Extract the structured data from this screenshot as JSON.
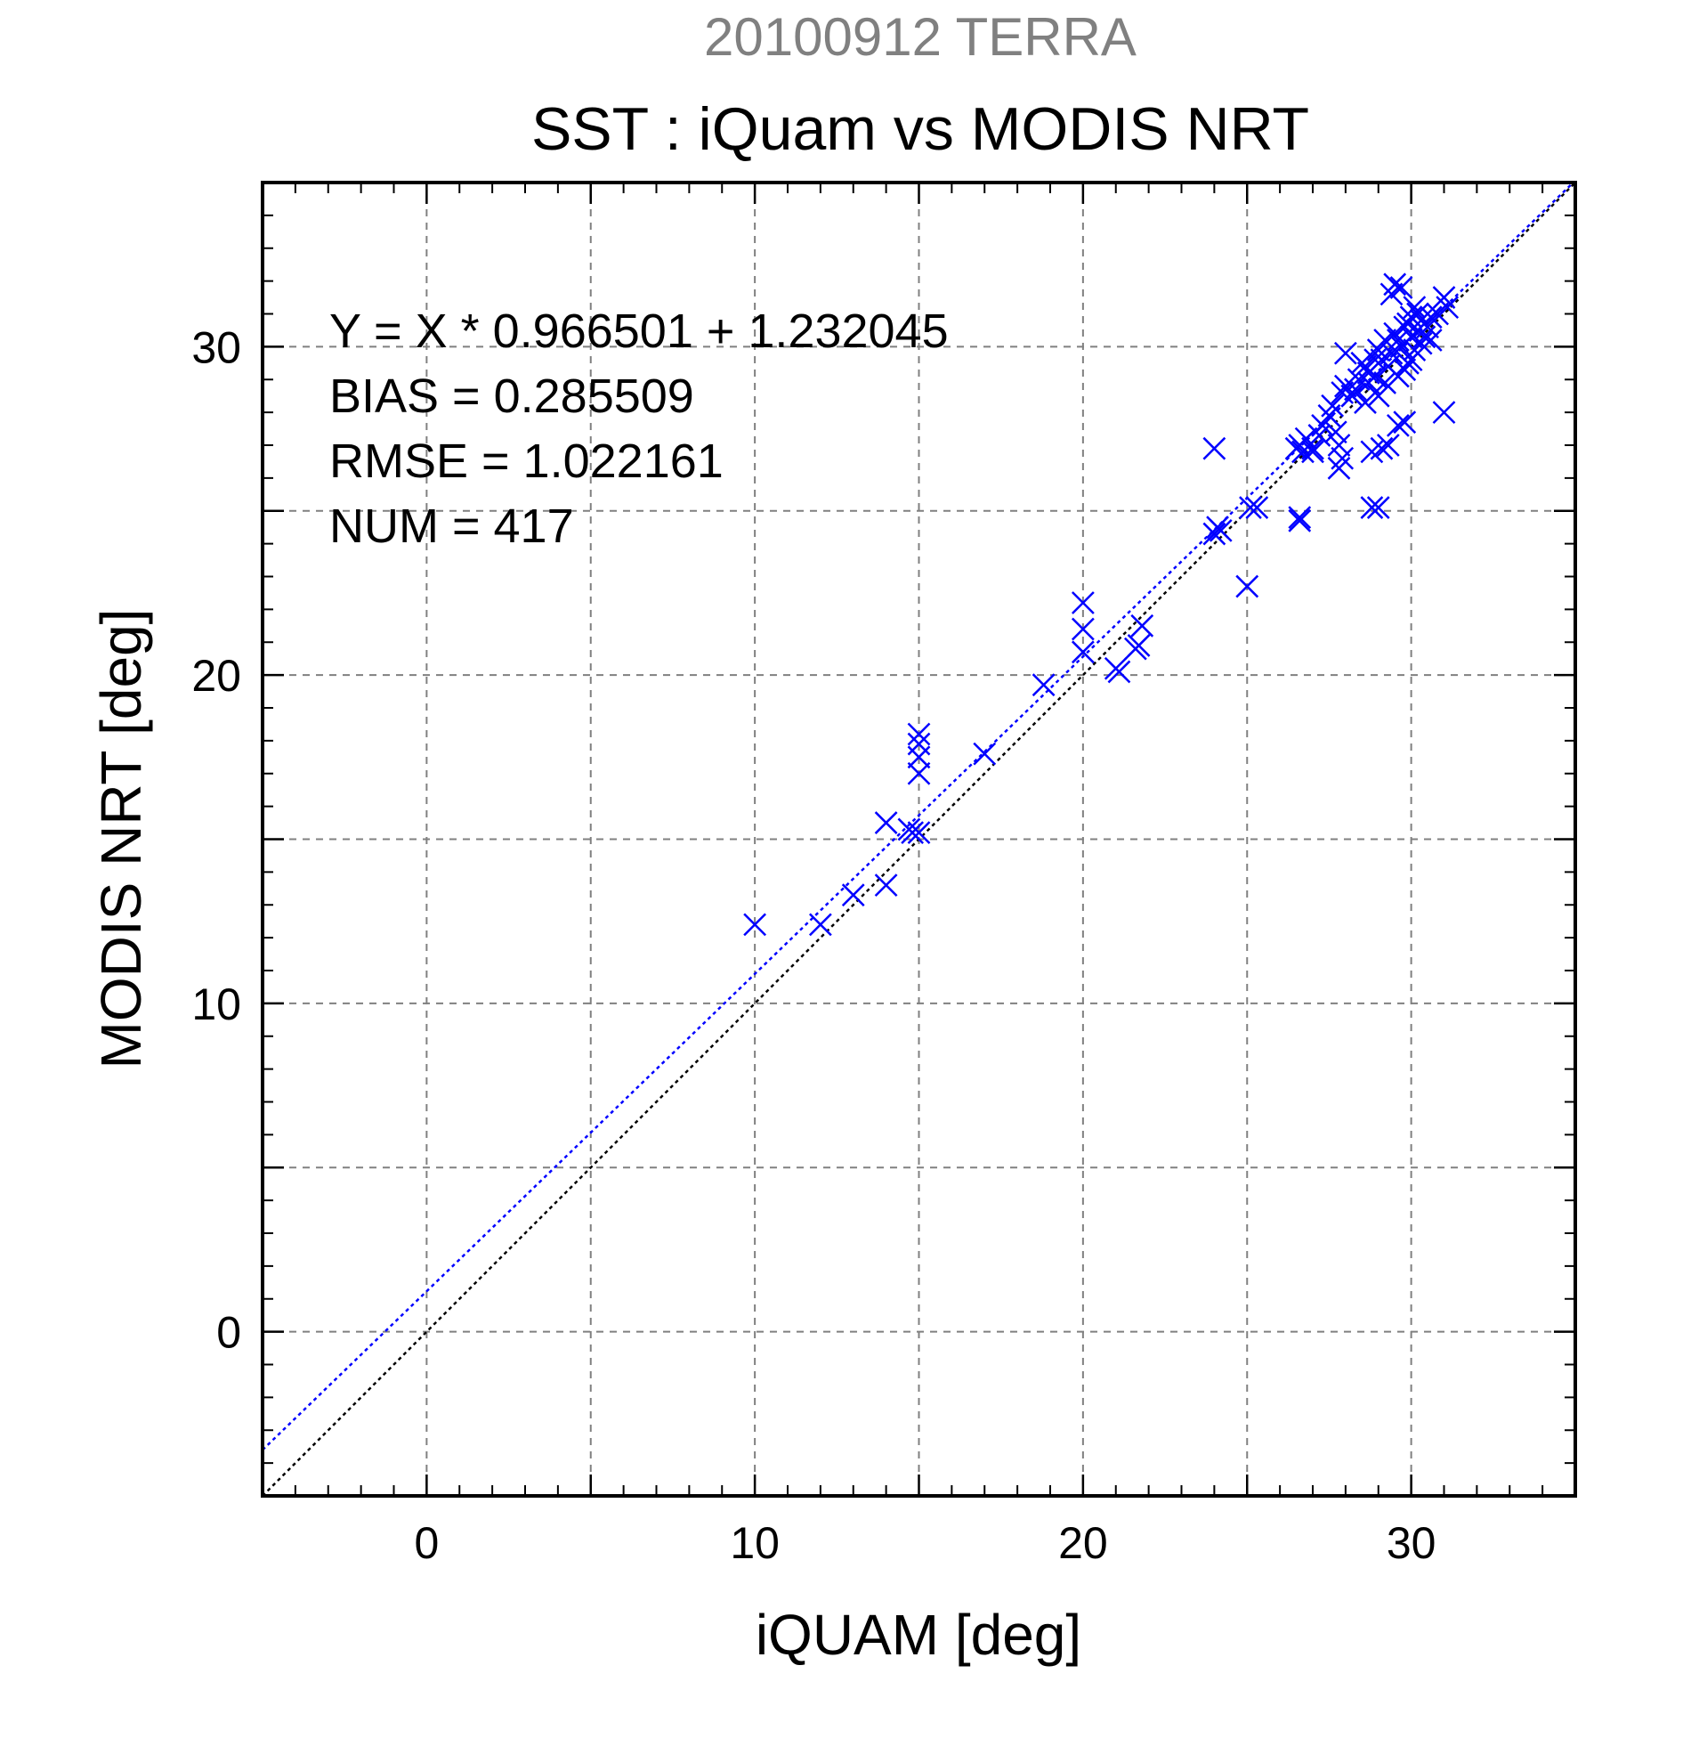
{
  "chart_data": {
    "type": "scatter",
    "title": "20100912 TERRA",
    "subtitle": "SST : iQuam vs MODIS NRT",
    "xlabel": "iQUAM [deg]",
    "ylabel": "MODIS NRT [deg]",
    "xlim": [
      -5,
      35
    ],
    "ylim": [
      -5,
      35
    ],
    "xticks": [
      0,
      10,
      20,
      30
    ],
    "yticks": [
      0,
      10,
      20,
      30
    ],
    "grid_step": 5,
    "minor_step": 1,
    "grid": true,
    "colors": {
      "title": "#808080",
      "text": "#000000",
      "points": "#0000ff",
      "fit_line": "#0000ff",
      "identity_line": "#000000",
      "grid": "#808080"
    },
    "stats": [
      "Y = X * 0.966501 + 1.232045",
      "BIAS = 0.285509",
      "RMSE = 1.022161",
      "NUM = 417"
    ],
    "fit": {
      "slope": 0.966501,
      "intercept": 1.232045
    },
    "identity": {
      "slope": 1,
      "intercept": 0
    },
    "points": [
      [
        10.0,
        12.4
      ],
      [
        12.0,
        12.4
      ],
      [
        13.0,
        13.3
      ],
      [
        14.0,
        13.6
      ],
      [
        14.0,
        15.5
      ],
      [
        14.7,
        15.3
      ],
      [
        14.8,
        15.2
      ],
      [
        15.0,
        15.2
      ],
      [
        15.0,
        17.0
      ],
      [
        15.0,
        17.5
      ],
      [
        15.0,
        17.9
      ],
      [
        15.0,
        18.2
      ],
      [
        17.0,
        17.6
      ],
      [
        18.8,
        19.7
      ],
      [
        20.0,
        20.7
      ],
      [
        20.0,
        21.4
      ],
      [
        20.0,
        22.2
      ],
      [
        21.0,
        20.2
      ],
      [
        21.1,
        20.1
      ],
      [
        21.6,
        20.8
      ],
      [
        21.7,
        20.9
      ],
      [
        21.8,
        21.5
      ],
      [
        24.0,
        24.3
      ],
      [
        24.1,
        24.5
      ],
      [
        24.2,
        24.4
      ],
      [
        24.0,
        26.9
      ],
      [
        25.0,
        22.7
      ],
      [
        25.1,
        25.1
      ],
      [
        25.3,
        25.1
      ],
      [
        26.6,
        24.8
      ],
      [
        26.6,
        24.7
      ],
      [
        26.5,
        26.9
      ],
      [
        26.6,
        27.0
      ],
      [
        26.7,
        26.8
      ],
      [
        26.8,
        27.2
      ],
      [
        27.0,
        26.8
      ],
      [
        27.0,
        26.9
      ],
      [
        27.2,
        27.3
      ],
      [
        27.3,
        27.6
      ],
      [
        27.5,
        27.9
      ],
      [
        27.6,
        28.2
      ],
      [
        27.7,
        27.4
      ],
      [
        27.8,
        26.3
      ],
      [
        27.9,
        26.6
      ],
      [
        27.8,
        27.0
      ],
      [
        27.9,
        28.6
      ],
      [
        28.0,
        29.8
      ],
      [
        28.0,
        28.8
      ],
      [
        28.2,
        28.5
      ],
      [
        28.4,
        29.0
      ],
      [
        28.5,
        29.5
      ],
      [
        28.6,
        28.3
      ],
      [
        28.7,
        29.2
      ],
      [
        28.8,
        25.1
      ],
      [
        28.8,
        26.8
      ],
      [
        28.9,
        29.6
      ],
      [
        29.0,
        25.1
      ],
      [
        29.0,
        29.9
      ],
      [
        29.1,
        26.9
      ],
      [
        29.2,
        30.2
      ],
      [
        29.3,
        27.0
      ],
      [
        29.3,
        29.4
      ],
      [
        29.4,
        31.6
      ],
      [
        29.5,
        31.9
      ],
      [
        29.5,
        30.4
      ],
      [
        29.6,
        27.6
      ],
      [
        29.6,
        29.1
      ],
      [
        29.7,
        31.8
      ],
      [
        29.7,
        30.0
      ],
      [
        29.8,
        27.7
      ],
      [
        29.8,
        30.6
      ],
      [
        29.9,
        29.5
      ],
      [
        30.0,
        30.9
      ],
      [
        30.0,
        30.3
      ],
      [
        30.1,
        29.9
      ],
      [
        30.1,
        31.2
      ],
      [
        30.2,
        30.5
      ],
      [
        30.3,
        30.1
      ],
      [
        30.3,
        30.8
      ],
      [
        30.5,
        30.6
      ],
      [
        30.6,
        30.9
      ],
      [
        30.8,
        31.0
      ],
      [
        31.0,
        31.5
      ],
      [
        31.0,
        28.0
      ],
      [
        31.1,
        31.2
      ],
      [
        28.3,
        28.7
      ],
      [
        28.6,
        29.4
      ],
      [
        28.9,
        29.1
      ],
      [
        29.1,
        29.6
      ],
      [
        29.2,
        28.9
      ],
      [
        29.4,
        29.8
      ],
      [
        29.6,
        30.2
      ],
      [
        29.9,
        30.7
      ],
      [
        30.2,
        31.0
      ],
      [
        30.4,
        30.3
      ],
      [
        29.0,
        28.5
      ],
      [
        28.7,
        28.9
      ],
      [
        29.8,
        29.3
      ],
      [
        30.0,
        29.6
      ],
      [
        30.6,
        30.2
      ]
    ]
  }
}
